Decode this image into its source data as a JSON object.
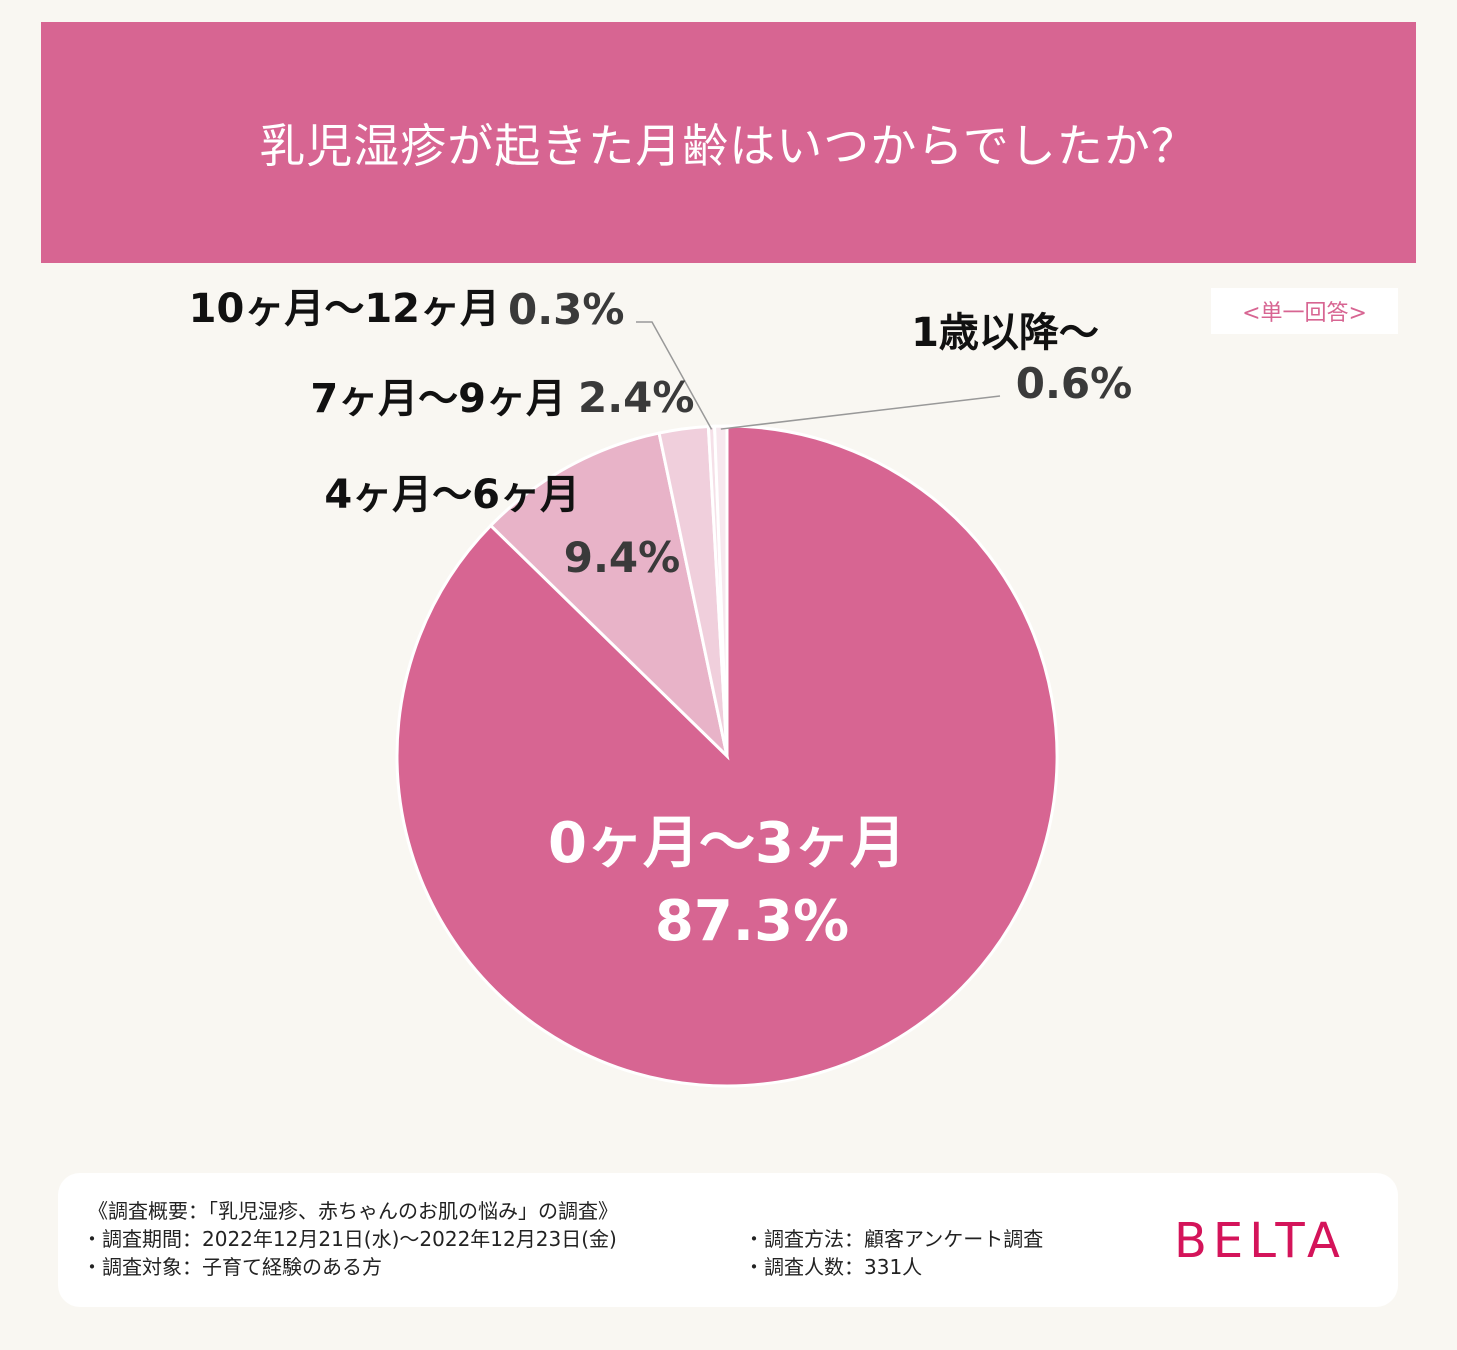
{
  "header": {
    "title": "乳児湿疹が起きた月齢はいつからでしたか？"
  },
  "answer_type": "<単一回答>",
  "chart_data": {
    "type": "pie",
    "title": "乳児湿疹が起きた月齢はいつからでしたか？",
    "unit": "%",
    "slices": [
      {
        "label": "0ヶ月〜3ヶ月",
        "value": 87.3,
        "value_label": "87.3%",
        "color": "#d76592"
      },
      {
        "label": "4ヶ月〜6ヶ月",
        "value": 9.4,
        "value_label": "9.4%",
        "color": "#e8b3c8"
      },
      {
        "label": "7ヶ月〜9ヶ月",
        "value": 2.4,
        "value_label": "2.4%",
        "color": "#f0cfdc"
      },
      {
        "label": "10ヶ月〜12ヶ月",
        "value": 0.3,
        "value_label": "0.3%",
        "color": "#f5e0e8"
      },
      {
        "label": "1歳以降〜",
        "value": 0.6,
        "value_label": "0.6%",
        "color": "#f7e8ee"
      }
    ]
  },
  "footer": {
    "summary": "《調査概要：「乳児湿疹、赤ちゃんのお肌の悩み」の調査》",
    "period": "・調査期間：2022年12月21日(水)〜2022年12月23日(金)",
    "target": "・調査対象：子育て経験のある方",
    "method": "・調査方法：顧客アンケート調査",
    "count": "・調査人数：331人",
    "logo": "BELTA"
  }
}
